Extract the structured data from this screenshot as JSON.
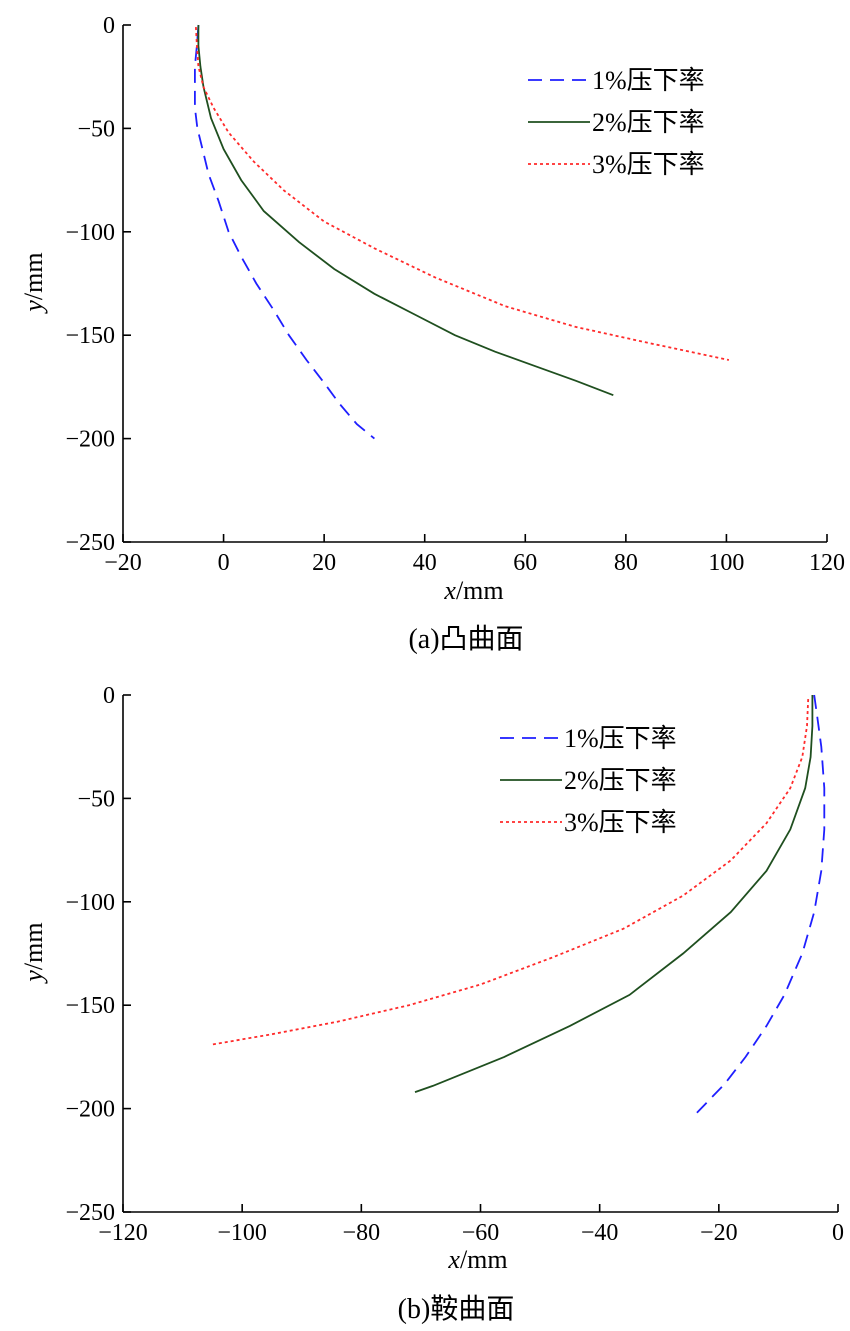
{
  "chart_data": [
    {
      "type": "line",
      "caption": "(a)凸曲面",
      "xlabel_var": "x",
      "xlabel_unit": "/mm",
      "ylabel_var": "y",
      "ylabel_unit": "/mm",
      "xlim": [
        -20,
        120
      ],
      "ylim": [
        -250,
        0
      ],
      "xticks": [
        -20,
        0,
        20,
        40,
        60,
        80,
        100,
        120
      ],
      "xtick_labels": [
        "−20",
        "0",
        "20",
        "40",
        "60",
        "80",
        "100",
        "120"
      ],
      "yticks": [
        0,
        -50,
        -100,
        -150,
        -200,
        -250
      ],
      "ytick_labels": [
        "0",
        "−50",
        "−100",
        "−150",
        "−200",
        "−250"
      ],
      "legend_position": "top-right",
      "series": [
        {
          "name": "1%压下率",
          "color": "#1f1fff",
          "style": "dashed",
          "x": [
            -5,
            -5.3,
            -5.7,
            -5.7,
            -5.2,
            -4.2,
            -3,
            -1,
            1,
            3.5,
            6.5,
            10,
            13,
            16.5,
            20,
            23,
            26.5,
            30
          ],
          "y": [
            0,
            -10,
            -20,
            -40,
            -50,
            -60,
            -72,
            -85,
            -100,
            -112,
            -125,
            -138,
            -150,
            -162,
            -173,
            -183,
            -193,
            -200
          ]
        },
        {
          "name": "2%压下率",
          "color": "#1f4f1f",
          "style": "solid",
          "x": [
            -5,
            -5,
            -4.6,
            -4,
            -2.5,
            0,
            3.5,
            8,
            15,
            22,
            30,
            38,
            46,
            54,
            62,
            70,
            77.5
          ],
          "y": [
            0,
            -10,
            -20,
            -30,
            -45,
            -60,
            -75,
            -90,
            -105,
            -118,
            -130,
            -140,
            -150,
            -158,
            -165,
            -172,
            -179
          ]
        },
        {
          "name": "3%压下率",
          "color": "#ff2a2a",
          "style": "dotted",
          "x": [
            -5.5,
            -5.3,
            -5,
            -4,
            -2,
            1,
            6,
            12,
            20,
            30,
            42,
            56,
            70,
            85,
            100.5
          ],
          "y": [
            -1,
            -10,
            -20,
            -30,
            -40,
            -52,
            -66,
            -80,
            -95,
            -108,
            -122,
            -136,
            -146,
            -154,
            -162
          ]
        }
      ]
    },
    {
      "type": "line",
      "caption": "(b)鞍曲面",
      "xlabel_var": "x",
      "xlabel_unit": "/mm",
      "ylabel_var": "y",
      "ylabel_unit": "/mm",
      "xlim": [
        -120,
        0
      ],
      "ylim": [
        -250,
        0
      ],
      "xticks": [
        -120,
        -100,
        -80,
        -60,
        -40,
        -20,
        0
      ],
      "xtick_labels": [
        "−120",
        "−100",
        "−80",
        "−60",
        "−40",
        "−20",
        "0"
      ],
      "yticks": [
        0,
        -50,
        -100,
        -150,
        -200,
        -250
      ],
      "ytick_labels": [
        "0",
        "−50",
        "−100",
        "−150",
        "−200",
        "−250"
      ],
      "legend_position": "top-right",
      "series": [
        {
          "name": "1%压下率",
          "color": "#1f1fff",
          "style": "dashed",
          "x": [
            -4,
            -3.5,
            -2.8,
            -2.3,
            -2.3,
            -2.8,
            -4,
            -6,
            -9,
            -12,
            -15.5,
            -19,
            -22,
            -24
          ],
          "y": [
            0,
            -10,
            -25,
            -45,
            -65,
            -85,
            -105,
            -125,
            -145,
            -160,
            -175,
            -188,
            -197,
            -203
          ]
        },
        {
          "name": "2%压下率",
          "color": "#1f4f1f",
          "style": "solid",
          "x": [
            -4.3,
            -4.3,
            -4.6,
            -5.5,
            -8,
            -12,
            -18,
            -26,
            -35,
            -45,
            -56,
            -68,
            -71
          ],
          "y": [
            0,
            -15,
            -30,
            -45,
            -65,
            -85,
            -105,
            -125,
            -145,
            -160,
            -175,
            -189,
            -192
          ]
        },
        {
          "name": "3%压下率",
          "color": "#ff2a2a",
          "style": "dotted",
          "x": [
            -5,
            -5.2,
            -6,
            -8,
            -12,
            -18,
            -26,
            -36,
            -48,
            -60,
            -72,
            -84,
            -95,
            -105
          ],
          "y": [
            -2,
            -15,
            -30,
            -45,
            -62,
            -80,
            -97,
            -113,
            -127,
            -140,
            -150,
            -158,
            -164,
            -169
          ]
        }
      ]
    }
  ]
}
